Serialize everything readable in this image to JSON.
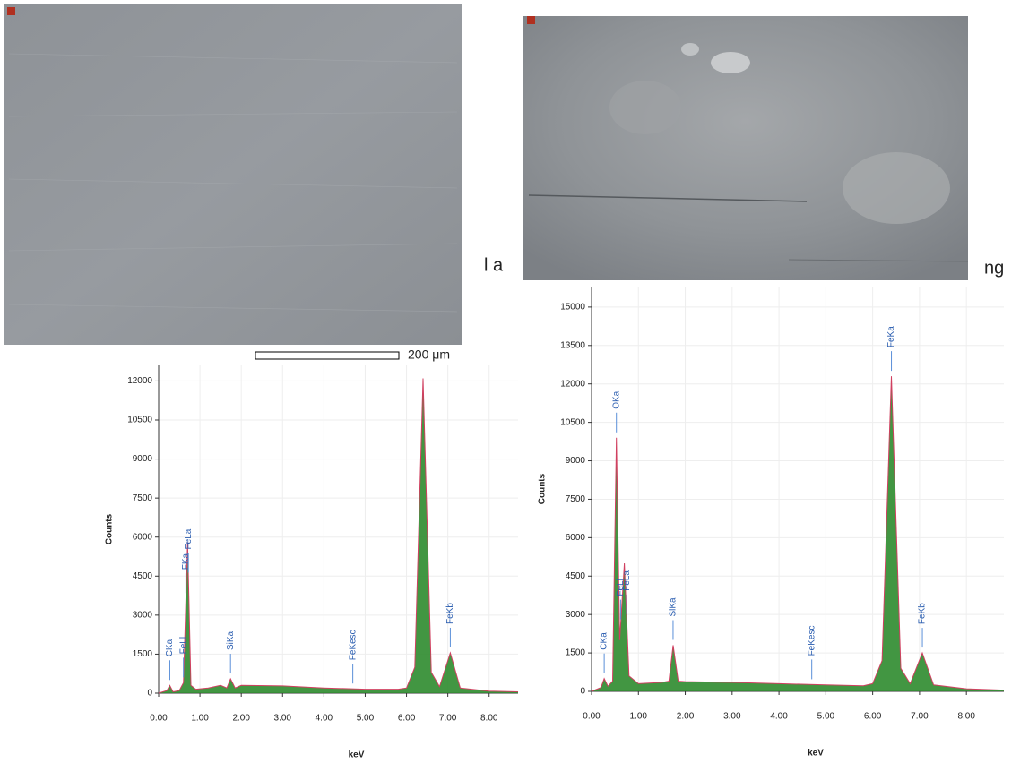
{
  "chart_data": [
    {
      "type": "line",
      "xlabel": "keV",
      "ylabel": "Counts",
      "color": "#d04060",
      "fill": "#2e8b2e",
      "x": [
        0,
        0.2,
        0.27,
        0.35,
        0.5,
        0.6,
        0.7,
        0.78,
        0.9,
        1.2,
        1.5,
        1.65,
        1.74,
        1.85,
        2.0,
        3.0,
        4.0,
        5.0,
        5.8,
        6.0,
        6.2,
        6.4,
        6.6,
        6.8,
        7.06,
        7.3,
        8.0,
        8.7
      ],
      "values": [
        0,
        100,
        300,
        50,
        100,
        400,
        5800,
        300,
        150,
        200,
        300,
        200,
        550,
        200,
        300,
        280,
        200,
        150,
        150,
        200,
        1000,
        12100,
        800,
        250,
        1550,
        200,
        80,
        50
      ],
      "xlim": [
        0,
        8.7
      ],
      "ylim": [
        0,
        12600
      ],
      "xticks": [
        {
          "value": 0,
          "label": "0.00"
        },
        {
          "value": 1,
          "label": "1.00"
        },
        {
          "value": 2,
          "label": "2.00"
        },
        {
          "value": 3,
          "label": "3.00"
        },
        {
          "value": 4,
          "label": "4.00"
        },
        {
          "value": 5,
          "label": "5.00"
        },
        {
          "value": 6,
          "label": "6.00"
        },
        {
          "value": 7,
          "label": "7.00"
        },
        {
          "value": 8,
          "label": "8.00"
        }
      ],
      "yticks": [
        0,
        1500,
        3000,
        4500,
        6000,
        7500,
        9000,
        10500,
        12000
      ],
      "grid": true,
      "annotations": [
        {
          "text": "CKa",
          "x": 0.27
        },
        {
          "text": "FeLl",
          "x": 0.6
        },
        {
          "text": "FKa",
          "x": 0.66
        },
        {
          "text": "FeLa",
          "x": 0.72
        },
        {
          "text": "SiKa",
          "x": 1.74
        },
        {
          "text": "FeKesc",
          "x": 4.7
        },
        {
          "text": "FeKb",
          "x": 7.06
        }
      ]
    },
    {
      "type": "line",
      "xlabel": "keV",
      "ylabel": "Counts",
      "color": "#d04060",
      "fill": "#2e8b2e",
      "x": [
        0,
        0.2,
        0.27,
        0.35,
        0.45,
        0.53,
        0.6,
        0.7,
        0.8,
        1.0,
        1.5,
        1.65,
        1.74,
        1.85,
        2.0,
        3.0,
        4.0,
        5.0,
        5.8,
        6.0,
        6.2,
        6.4,
        6.6,
        6.8,
        7.06,
        7.3,
        8.0,
        8.8
      ],
      "values": [
        0,
        150,
        500,
        200,
        400,
        9900,
        2000,
        5000,
        600,
        300,
        350,
        400,
        1800,
        400,
        380,
        350,
        300,
        250,
        220,
        300,
        1200,
        12300,
        900,
        300,
        1500,
        250,
        100,
        50
      ],
      "xlim": [
        0,
        8.8
      ],
      "ylim": [
        0,
        15800
      ],
      "xticks": [
        {
          "value": 0,
          "label": "0.00"
        },
        {
          "value": 1,
          "label": "1.00"
        },
        {
          "value": 2,
          "label": "2.00"
        },
        {
          "value": 3,
          "label": "3.00"
        },
        {
          "value": 4,
          "label": "4.00"
        },
        {
          "value": 5,
          "label": "5.00"
        },
        {
          "value": 6,
          "label": "6.00"
        },
        {
          "value": 7,
          "label": "7.00"
        },
        {
          "value": 8,
          "label": "8.00"
        }
      ],
      "yticks": [
        0,
        1500,
        3000,
        4500,
        6000,
        7500,
        9000,
        10500,
        12000,
        13500,
        15000
      ],
      "grid": true,
      "annotations": [
        {
          "text": "CKa",
          "x": 0.27
        },
        {
          "text": "OKa",
          "x": 0.53
        },
        {
          "text": "FeLl",
          "x": 0.62
        },
        {
          "text": "FeLa",
          "x": 0.75
        },
        {
          "text": "SiKa",
          "x": 1.74
        },
        {
          "text": "FeKesc",
          "x": 4.7
        },
        {
          "text": "FeKa",
          "x": 6.4
        },
        {
          "text": "FeKb",
          "x": 7.06
        }
      ]
    }
  ],
  "scale_bar": "200 μm",
  "fragments": [
    "l a",
    "ng"
  ]
}
